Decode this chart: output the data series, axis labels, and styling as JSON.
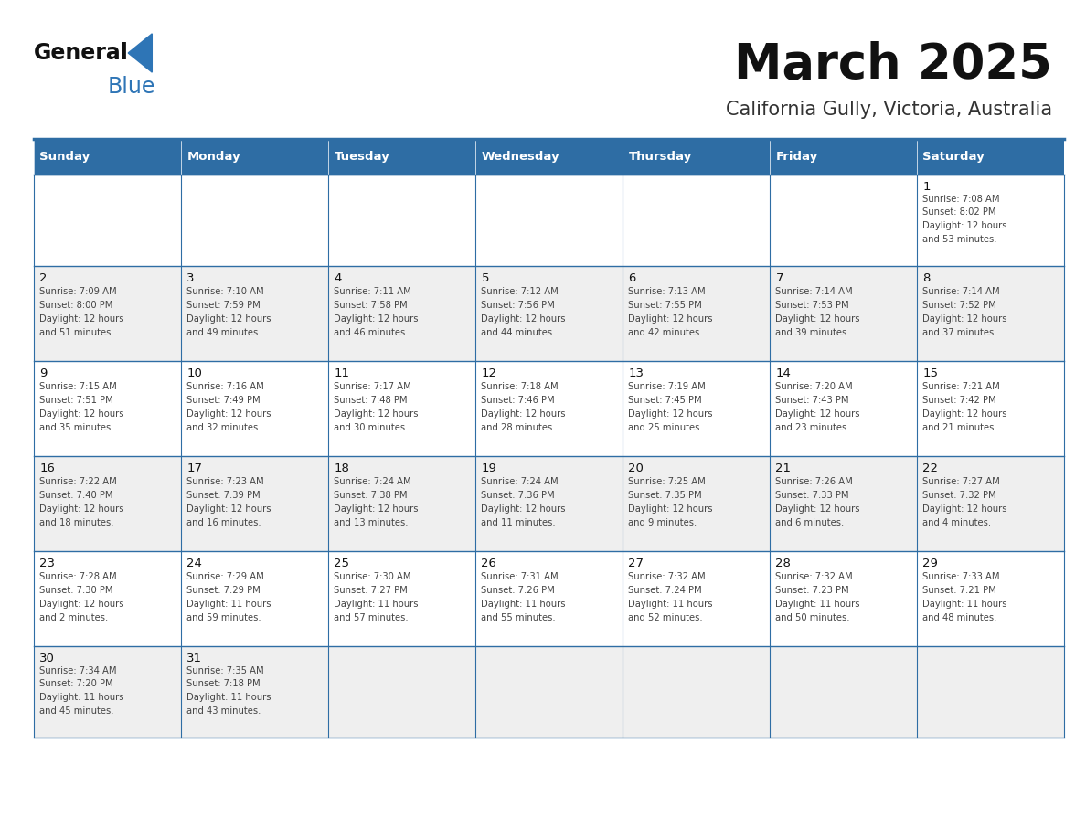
{
  "title": "March 2025",
  "subtitle": "California Gully, Victoria, Australia",
  "header_color": "#2e6da4",
  "header_text_color": "#ffffff",
  "day_names": [
    "Sunday",
    "Monday",
    "Tuesday",
    "Wednesday",
    "Thursday",
    "Friday",
    "Saturday"
  ],
  "cell_bg_white": "#ffffff",
  "cell_bg_gray": "#efefef",
  "border_color": "#2e6da4",
  "text_color": "#444444",
  "days": [
    {
      "day": 1,
      "col": 6,
      "row": 0,
      "sunrise": "7:08 AM",
      "sunset": "8:02 PM",
      "daylight": "12 hours and 53 minutes"
    },
    {
      "day": 2,
      "col": 0,
      "row": 1,
      "sunrise": "7:09 AM",
      "sunset": "8:00 PM",
      "daylight": "12 hours and 51 minutes"
    },
    {
      "day": 3,
      "col": 1,
      "row": 1,
      "sunrise": "7:10 AM",
      "sunset": "7:59 PM",
      "daylight": "12 hours and 49 minutes"
    },
    {
      "day": 4,
      "col": 2,
      "row": 1,
      "sunrise": "7:11 AM",
      "sunset": "7:58 PM",
      "daylight": "12 hours and 46 minutes"
    },
    {
      "day": 5,
      "col": 3,
      "row": 1,
      "sunrise": "7:12 AM",
      "sunset": "7:56 PM",
      "daylight": "12 hours and 44 minutes"
    },
    {
      "day": 6,
      "col": 4,
      "row": 1,
      "sunrise": "7:13 AM",
      "sunset": "7:55 PM",
      "daylight": "12 hours and 42 minutes"
    },
    {
      "day": 7,
      "col": 5,
      "row": 1,
      "sunrise": "7:14 AM",
      "sunset": "7:53 PM",
      "daylight": "12 hours and 39 minutes"
    },
    {
      "day": 8,
      "col": 6,
      "row": 1,
      "sunrise": "7:14 AM",
      "sunset": "7:52 PM",
      "daylight": "12 hours and 37 minutes"
    },
    {
      "day": 9,
      "col": 0,
      "row": 2,
      "sunrise": "7:15 AM",
      "sunset": "7:51 PM",
      "daylight": "12 hours and 35 minutes"
    },
    {
      "day": 10,
      "col": 1,
      "row": 2,
      "sunrise": "7:16 AM",
      "sunset": "7:49 PM",
      "daylight": "12 hours and 32 minutes"
    },
    {
      "day": 11,
      "col": 2,
      "row": 2,
      "sunrise": "7:17 AM",
      "sunset": "7:48 PM",
      "daylight": "12 hours and 30 minutes"
    },
    {
      "day": 12,
      "col": 3,
      "row": 2,
      "sunrise": "7:18 AM",
      "sunset": "7:46 PM",
      "daylight": "12 hours and 28 minutes"
    },
    {
      "day": 13,
      "col": 4,
      "row": 2,
      "sunrise": "7:19 AM",
      "sunset": "7:45 PM",
      "daylight": "12 hours and 25 minutes"
    },
    {
      "day": 14,
      "col": 5,
      "row": 2,
      "sunrise": "7:20 AM",
      "sunset": "7:43 PM",
      "daylight": "12 hours and 23 minutes"
    },
    {
      "day": 15,
      "col": 6,
      "row": 2,
      "sunrise": "7:21 AM",
      "sunset": "7:42 PM",
      "daylight": "12 hours and 21 minutes"
    },
    {
      "day": 16,
      "col": 0,
      "row": 3,
      "sunrise": "7:22 AM",
      "sunset": "7:40 PM",
      "daylight": "12 hours and 18 minutes"
    },
    {
      "day": 17,
      "col": 1,
      "row": 3,
      "sunrise": "7:23 AM",
      "sunset": "7:39 PM",
      "daylight": "12 hours and 16 minutes"
    },
    {
      "day": 18,
      "col": 2,
      "row": 3,
      "sunrise": "7:24 AM",
      "sunset": "7:38 PM",
      "daylight": "12 hours and 13 minutes"
    },
    {
      "day": 19,
      "col": 3,
      "row": 3,
      "sunrise": "7:24 AM",
      "sunset": "7:36 PM",
      "daylight": "12 hours and 11 minutes"
    },
    {
      "day": 20,
      "col": 4,
      "row": 3,
      "sunrise": "7:25 AM",
      "sunset": "7:35 PM",
      "daylight": "12 hours and 9 minutes"
    },
    {
      "day": 21,
      "col": 5,
      "row": 3,
      "sunrise": "7:26 AM",
      "sunset": "7:33 PM",
      "daylight": "12 hours and 6 minutes"
    },
    {
      "day": 22,
      "col": 6,
      "row": 3,
      "sunrise": "7:27 AM",
      "sunset": "7:32 PM",
      "daylight": "12 hours and 4 minutes"
    },
    {
      "day": 23,
      "col": 0,
      "row": 4,
      "sunrise": "7:28 AM",
      "sunset": "7:30 PM",
      "daylight": "12 hours and 2 minutes"
    },
    {
      "day": 24,
      "col": 1,
      "row": 4,
      "sunrise": "7:29 AM",
      "sunset": "7:29 PM",
      "daylight": "11 hours and 59 minutes"
    },
    {
      "day": 25,
      "col": 2,
      "row": 4,
      "sunrise": "7:30 AM",
      "sunset": "7:27 PM",
      "daylight": "11 hours and 57 minutes"
    },
    {
      "day": 26,
      "col": 3,
      "row": 4,
      "sunrise": "7:31 AM",
      "sunset": "7:26 PM",
      "daylight": "11 hours and 55 minutes"
    },
    {
      "day": 27,
      "col": 4,
      "row": 4,
      "sunrise": "7:32 AM",
      "sunset": "7:24 PM",
      "daylight": "11 hours and 52 minutes"
    },
    {
      "day": 28,
      "col": 5,
      "row": 4,
      "sunrise": "7:32 AM",
      "sunset": "7:23 PM",
      "daylight": "11 hours and 50 minutes"
    },
    {
      "day": 29,
      "col": 6,
      "row": 4,
      "sunrise": "7:33 AM",
      "sunset": "7:21 PM",
      "daylight": "11 hours and 48 minutes"
    },
    {
      "day": 30,
      "col": 0,
      "row": 5,
      "sunrise": "7:34 AM",
      "sunset": "7:20 PM",
      "daylight": "11 hours and 45 minutes"
    },
    {
      "day": 31,
      "col": 1,
      "row": 5,
      "sunrise": "7:35 AM",
      "sunset": "7:18 PM",
      "daylight": "11 hours and 43 minutes"
    }
  ]
}
